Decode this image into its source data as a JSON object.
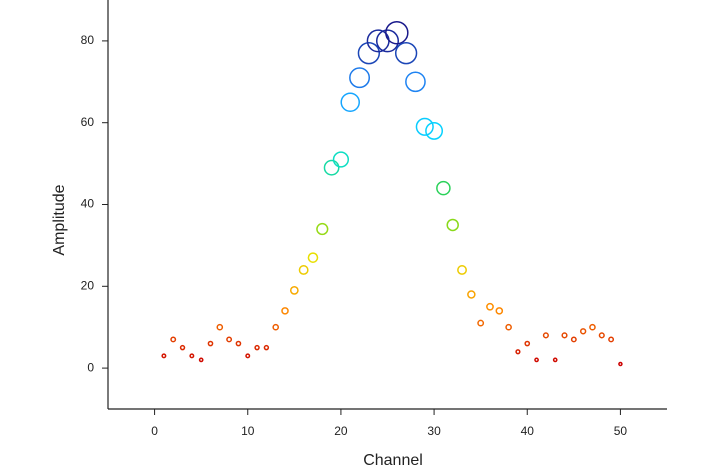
{
  "chart_data": {
    "type": "scatter",
    "x_label": "Channel",
    "y_label": "Amplitude",
    "x": [
      1,
      2,
      3,
      4,
      5,
      6,
      7,
      8,
      9,
      10,
      11,
      12,
      13,
      14,
      15,
      16,
      17,
      18,
      19,
      20,
      21,
      22,
      23,
      24,
      25,
      26,
      27,
      28,
      29,
      30,
      31,
      32,
      33,
      34,
      35,
      36,
      37,
      38,
      39,
      40,
      41,
      42,
      43,
      44,
      45,
      46,
      47,
      48,
      49,
      50
    ],
    "values": [
      3,
      7,
      5,
      3,
      2,
      6,
      10,
      7,
      6,
      3,
      5,
      5,
      10,
      14,
      19,
      24,
      27,
      34,
      49,
      51,
      65,
      71,
      77,
      80,
      80,
      82,
      77,
      70,
      59,
      58,
      44,
      35,
      24,
      18,
      11,
      15,
      14,
      10,
      4,
      6,
      2,
      8,
      2,
      8,
      7,
      9,
      10,
      8,
      7,
      1
    ],
    "colormap": [
      "#cc0000",
      "#ff8c00",
      "#e6e600",
      "#33cc33",
      "#00e5ff",
      "#1e90ff",
      "#1a1a8c"
    ],
    "size_by_value": true,
    "xlim": [
      -5,
      55
    ],
    "xticks": [
      0,
      10,
      20,
      30,
      40,
      50
    ],
    "ylim": [
      -10,
      90
    ],
    "yticks": [
      0,
      20,
      40,
      60,
      80
    ]
  }
}
